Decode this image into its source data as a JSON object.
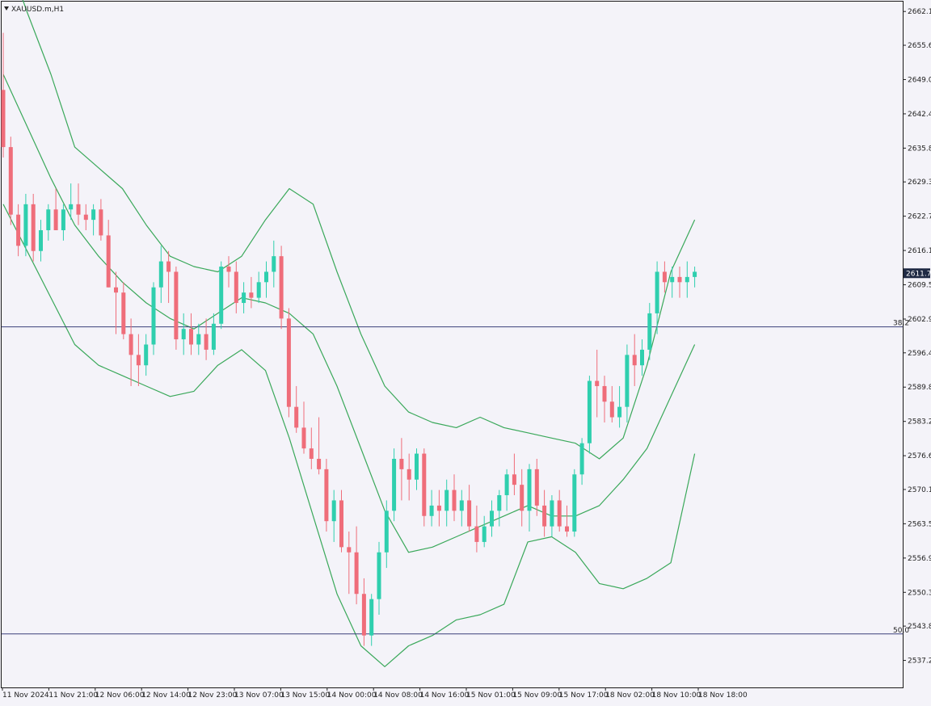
{
  "symbol_label": "XAUUSD.m,H1",
  "colors": {
    "background": "#f4f3f9",
    "bull": "#2fcfae",
    "bear": "#ef6d7a",
    "bands": "#3aa85a",
    "fib_line": "#3b3f7a",
    "price_tag_bg": "#1f2a44",
    "axis_text": "#222222"
  },
  "chart_data": {
    "type": "candlestick",
    "timeframe": "H1",
    "ylim": [
      2532.0,
      2664.0
    ],
    "y_ticks": [
      "2662.10",
      "2655.60",
      "2649.00",
      "2642.40",
      "2635.80",
      "2629.30",
      "2622.70",
      "2616.10",
      "2609.50",
      "2602.90",
      "2596.40",
      "2589.80",
      "2583.20",
      "2576.60",
      "2570.10",
      "2563.50",
      "2556.90",
      "2550.30",
      "2543.80",
      "2537.20"
    ],
    "x_labels": [
      "11 Nov 2024",
      "11 Nov 21:00",
      "12 Nov 06:00",
      "12 Nov 14:00",
      "12 Nov 23:00",
      "13 Nov 07:00",
      "13 Nov 15:00",
      "14 Nov 00:00",
      "14 Nov 08:00",
      "14 Nov 16:00",
      "15 Nov 01:00",
      "15 Nov 09:00",
      "15 Nov 17:00",
      "18 Nov 02:00",
      "18 Nov 10:00",
      "18 Nov 18:00"
    ],
    "current_price": "2611.72",
    "fib_levels": [
      {
        "label": "38.2",
        "price": 2601.4
      },
      {
        "label": "50.0",
        "price": 2542.3
      }
    ],
    "candles": [
      [
        2647,
        2658,
        2634,
        2636
      ],
      [
        2636,
        2638,
        2621,
        2623
      ],
      [
        2623,
        2625,
        2615,
        2617
      ],
      [
        2617,
        2627,
        2615,
        2625
      ],
      [
        2625,
        2627,
        2614,
        2616
      ],
      [
        2616,
        2622,
        2614,
        2620
      ],
      [
        2620,
        2625,
        2618,
        2624
      ],
      [
        2624,
        2628,
        2620,
        2620
      ],
      [
        2620,
        2625,
        2618,
        2624
      ],
      [
        2624,
        2629,
        2622,
        2625
      ],
      [
        2625,
        2629,
        2621,
        2623
      ],
      [
        2623,
        2625,
        2620,
        2622
      ],
      [
        2622,
        2625,
        2619,
        2624
      ],
      [
        2624,
        2626,
        2618,
        2619
      ],
      [
        2619,
        2622,
        2609,
        2609
      ],
      [
        2609,
        2612,
        2600,
        2608
      ],
      [
        2608,
        2610,
        2599,
        2600
      ],
      [
        2600,
        2603,
        2590,
        2596
      ],
      [
        2596,
        2600,
        2590,
        2594
      ],
      [
        2594,
        2600,
        2592,
        2598
      ],
      [
        2598,
        2610,
        2596,
        2609
      ],
      [
        2609,
        2617,
        2606,
        2614
      ],
      [
        2614,
        2616,
        2606,
        2612
      ],
      [
        2612,
        2613,
        2597,
        2599
      ],
      [
        2599,
        2604,
        2596,
        2601
      ],
      [
        2601,
        2604,
        2596,
        2598
      ],
      [
        2598,
        2602,
        2596,
        2600
      ],
      [
        2600,
        2603,
        2595,
        2597
      ],
      [
        2597,
        2604,
        2596,
        2602
      ],
      [
        2602,
        2614,
        2601,
        2613
      ],
      [
        2613,
        2615,
        2609,
        2612
      ],
      [
        2612,
        2614,
        2604,
        2606
      ],
      [
        2606,
        2610,
        2604,
        2608
      ],
      [
        2608,
        2611,
        2605,
        2607
      ],
      [
        2607,
        2612,
        2606,
        2610
      ],
      [
        2610,
        2614,
        2607,
        2612
      ],
      [
        2612,
        2618,
        2609,
        2615
      ],
      [
        2615,
        2617,
        2601,
        2603
      ],
      [
        2603,
        2605,
        2584,
        2586
      ],
      [
        2586,
        2590,
        2581,
        2582
      ],
      [
        2582,
        2587,
        2577,
        2578
      ],
      [
        2578,
        2582,
        2574,
        2576
      ],
      [
        2576,
        2584,
        2573,
        2574
      ],
      [
        2574,
        2576,
        2562,
        2564
      ],
      [
        2564,
        2570,
        2560,
        2568
      ],
      [
        2568,
        2570,
        2558,
        2559
      ],
      [
        2559,
        2562,
        2550,
        2558
      ],
      [
        2558,
        2563,
        2548,
        2550
      ],
      [
        2550,
        2553,
        2540,
        2542
      ],
      [
        2542,
        2550,
        2540,
        2549
      ],
      [
        2549,
        2560,
        2546,
        2558
      ],
      [
        2558,
        2568,
        2555,
        2566
      ],
      [
        2566,
        2578,
        2564,
        2576
      ],
      [
        2576,
        2580,
        2568,
        2574
      ],
      [
        2574,
        2577,
        2568,
        2572
      ],
      [
        2572,
        2578,
        2570,
        2577
      ],
      [
        2577,
        2578,
        2563,
        2565
      ],
      [
        2565,
        2570,
        2563,
        2567
      ],
      [
        2567,
        2570,
        2563,
        2566
      ],
      [
        2566,
        2572,
        2563,
        2570
      ],
      [
        2570,
        2573,
        2564,
        2566
      ],
      [
        2566,
        2570,
        2563,
        2568
      ],
      [
        2568,
        2571,
        2562,
        2563
      ],
      [
        2563,
        2567,
        2558,
        2560
      ],
      [
        2560,
        2565,
        2559,
        2563
      ],
      [
        2563,
        2568,
        2561,
        2566
      ],
      [
        2566,
        2570,
        2563,
        2569
      ],
      [
        2569,
        2574,
        2566,
        2573
      ],
      [
        2573,
        2577,
        2569,
        2571
      ],
      [
        2571,
        2574,
        2563,
        2566
      ],
      [
        2566,
        2575,
        2562,
        2574
      ],
      [
        2574,
        2576,
        2565,
        2567
      ],
      [
        2567,
        2570,
        2561,
        2563
      ],
      [
        2563,
        2569,
        2561,
        2568
      ],
      [
        2568,
        2570,
        2562,
        2563
      ],
      [
        2563,
        2567,
        2561,
        2562
      ],
      [
        2562,
        2574,
        2561,
        2573
      ],
      [
        2573,
        2580,
        2571,
        2579
      ],
      [
        2579,
        2592,
        2577,
        2591
      ],
      [
        2591,
        2597,
        2584,
        2590
      ],
      [
        2590,
        2592,
        2583,
        2587
      ],
      [
        2587,
        2590,
        2583,
        2584
      ],
      [
        2584,
        2590,
        2582,
        2586
      ],
      [
        2586,
        2598,
        2583,
        2596
      ],
      [
        2596,
        2600,
        2590,
        2594
      ],
      [
        2594,
        2599,
        2592,
        2597
      ],
      [
        2597,
        2606,
        2595,
        2604
      ],
      [
        2604,
        2614,
        2600,
        2612
      ],
      [
        2612,
        2614,
        2608,
        2610
      ],
      [
        2610,
        2613,
        2607,
        2611
      ],
      [
        2611,
        2613,
        2607,
        2610
      ],
      [
        2610,
        2614,
        2607,
        2611
      ],
      [
        2611,
        2613,
        2609,
        2612
      ]
    ],
    "bollinger": {
      "upper": [
        2675,
        2662,
        2650,
        2636,
        2632,
        2628,
        2621,
        2615,
        2613,
        2612,
        2615,
        2622,
        2628,
        2625,
        2612,
        2600,
        2590,
        2585,
        2583,
        2582,
        2584,
        2582,
        2581,
        2580,
        2579,
        2576,
        2580,
        2594,
        2612,
        2622
      ],
      "middle": [
        2650,
        2640,
        2630,
        2621,
        2615,
        2610,
        2606,
        2603,
        2601,
        2604,
        2607,
        2606,
        2604,
        2600,
        2590,
        2578,
        2566,
        2558,
        2559,
        2561,
        2563,
        2565,
        2567,
        2565,
        2565,
        2567,
        2572,
        2578,
        2588,
        2598
      ],
      "lower": [
        2625,
        2616,
        2607,
        2598,
        2594,
        2592,
        2590,
        2588,
        2589,
        2594,
        2597,
        2593,
        2580,
        2565,
        2550,
        2540,
        2536,
        2540,
        2542,
        2545,
        2546,
        2548,
        2560,
        2561,
        2558,
        2552,
        2551,
        2553,
        2556,
        2577
      ]
    }
  }
}
